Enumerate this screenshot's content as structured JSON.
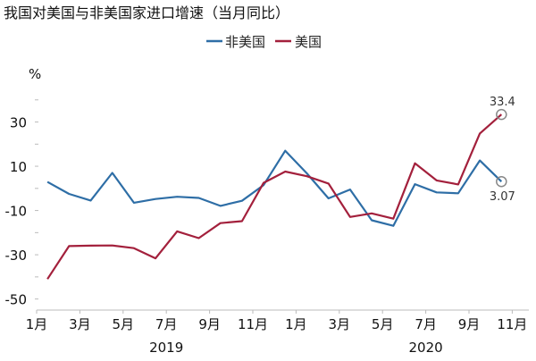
{
  "chart_data": {
    "type": "line",
    "title": "我国对美国与非美国家进口增速（当月同比）",
    "ylabel": "%",
    "ylim": [
      -55,
      45
    ],
    "yticks": [
      30,
      10,
      -10,
      -30,
      -50
    ],
    "x": [
      "2019-01",
      "2019-02",
      "2019-03",
      "2019-04",
      "2019-05",
      "2019-06",
      "2019-07",
      "2019-08",
      "2019-09",
      "2019-10",
      "2019-11",
      "2019-12",
      "2020-01",
      "2020-02",
      "2020-03",
      "2020-04",
      "2020-05",
      "2020-06",
      "2020-07",
      "2020-08",
      "2020-09",
      "2020-10"
    ],
    "xtick_labels": [
      "1月",
      "3月",
      "5月",
      "7月",
      "9月",
      "11月",
      "1月",
      "3月",
      "5月",
      "7月",
      "9月",
      "11月"
    ],
    "year_labels": [
      "2019",
      "2020"
    ],
    "legend_position": "top-center",
    "grid": false,
    "series": [
      {
        "name": "非美国",
        "color": "#2e6ea6",
        "values": [
          2.9,
          -2.5,
          -5.5,
          7.0,
          -6.5,
          -4.8,
          -3.8,
          -4.3,
          -7.9,
          -5.6,
          1.5,
          17.0,
          6.8,
          -4.5,
          -0.5,
          -14.4,
          -16.9,
          1.9,
          -1.8,
          -2.2,
          12.6,
          3.07
        ]
      },
      {
        "name": "美国",
        "color": "#a3203c",
        "values": [
          -41.0,
          -26.1,
          -25.9,
          -25.8,
          -27.0,
          -31.6,
          -19.4,
          -22.5,
          -15.7,
          -14.8,
          2.5,
          7.6,
          5.5,
          2.2,
          -12.9,
          -11.3,
          -13.7,
          11.3,
          3.6,
          1.8,
          24.8,
          33.4
        ]
      }
    ],
    "annotations": [
      {
        "series": "美国",
        "x": "2020-10",
        "text": "33.4"
      },
      {
        "series": "非美国",
        "x": "2020-10",
        "text": "3.07"
      }
    ]
  }
}
